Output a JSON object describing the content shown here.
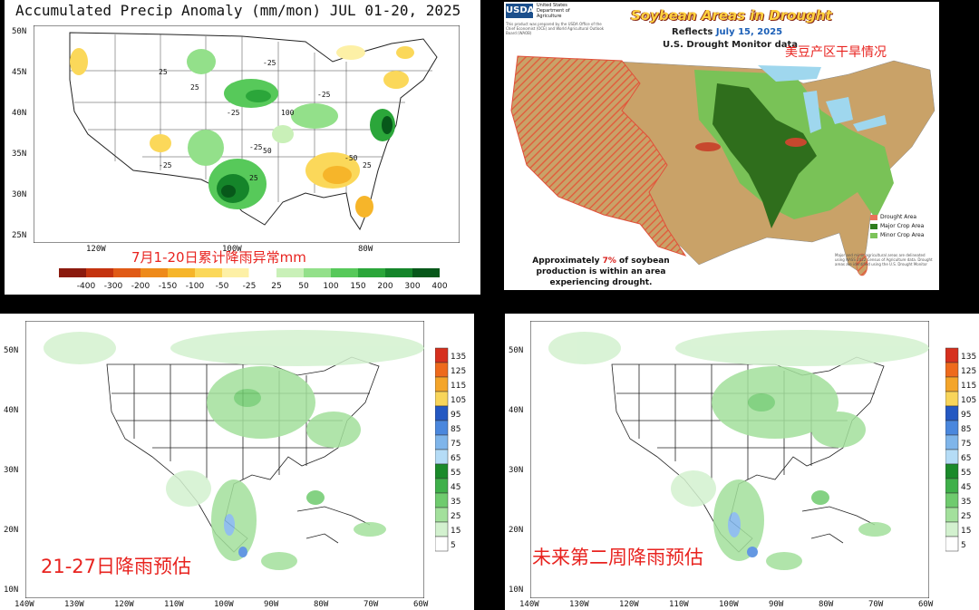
{
  "panel1": {
    "title": "Accumulated Precip Anomaly (mm/mon) JUL 01-20, 2025",
    "cn_caption": "7月1-20日累计降雨异常mm",
    "lat_labels": [
      "50N",
      "45N",
      "40N",
      "35N",
      "30N",
      "25N"
    ],
    "lon_labels": [
      "120W",
      "100W",
      "80W"
    ],
    "contour_labels": [
      "25",
      "-25",
      "25",
      "-25",
      "100",
      "-25",
      "50",
      "-25",
      "25",
      "-50",
      "25",
      "-25"
    ],
    "colorbar": {
      "labels": [
        "-400",
        "-300",
        "-200",
        "-150",
        "-100",
        "-50",
        "-25",
        "25",
        "50",
        "100",
        "150",
        "200",
        "300",
        "400"
      ],
      "colors": [
        "#8b1a0e",
        "#c4330f",
        "#e05a16",
        "#ee8a1a",
        "#f6b52a",
        "#fbd85a",
        "#fdf0a6",
        "#ffffff",
        "#c9f0b8",
        "#93e08a",
        "#57c95a",
        "#2ba63a",
        "#15852a",
        "#07581a"
      ]
    }
  },
  "panel2": {
    "agency": "USDA",
    "agency_dept": "United States Department of Agriculture",
    "source_note": "This product was prepared by the USDA Office of the Chief Economist (OCE) and World Agricultural Outlook Board (WAOB)",
    "title": "Soybean Areas in Drought",
    "reflects_prefix": "Reflects",
    "reflects_date": "July 15, 2025",
    "source": "U.S. Drought Monitor data",
    "cn_caption": "美豆产区干旱情况",
    "note_pre": "Approximately",
    "note_pct": "7%",
    "note_post": "of soybean production is within an area experiencing drought.",
    "footnote": "Major and minor agricultural areas are delineated using NASS 2022 Census of Agriculture data. Drought areas are identified using the U.S. Drought Monitor",
    "legend": [
      {
        "label": "Drought Area",
        "color": "#e8735a"
      },
      {
        "label": "Major Crop Area",
        "color": "#2f7d1e"
      },
      {
        "label": "Minor Crop Area",
        "color": "#7cc35a"
      }
    ],
    "colors": {
      "land": "#c9a268",
      "drought": "#e37b51",
      "major": "#2f6e1c",
      "minor": "#79c257",
      "water": "#9fd7ee",
      "ocean": "#ffffff"
    }
  },
  "panel3": {
    "cn_caption": "21-27日降雨预估",
    "lat_labels": [
      "50N",
      "40N",
      "30N",
      "20N",
      "10N"
    ],
    "lon_labels": [
      "140W",
      "130W",
      "120W",
      "110W",
      "100W",
      "90W",
      "80W",
      "70W",
      "60W"
    ]
  },
  "panel4": {
    "cn_caption": "未来第二周降雨预估",
    "lat_labels": [
      "50N",
      "40N",
      "30N",
      "20N",
      "10N"
    ],
    "lon_labels": [
      "140W",
      "130W",
      "120W",
      "110W",
      "100W",
      "90W",
      "80W",
      "70W",
      "60W"
    ]
  },
  "forecast_colorbar": {
    "labels": [
      "135",
      "125",
      "115",
      "105",
      "95",
      "85",
      "75",
      "65",
      "55",
      "45",
      "35",
      "25",
      "15",
      "5"
    ],
    "colors": [
      "#d6301e",
      "#ee6a1c",
      "#f4a52a",
      "#f8d55a",
      "#2458c2",
      "#4a87dd",
      "#7fb5ea",
      "#b5dcf6",
      "#1a8a2a",
      "#3fb04a",
      "#6fcb6e",
      "#a3e09c",
      "#d3f1cf",
      "#ffffff"
    ]
  }
}
